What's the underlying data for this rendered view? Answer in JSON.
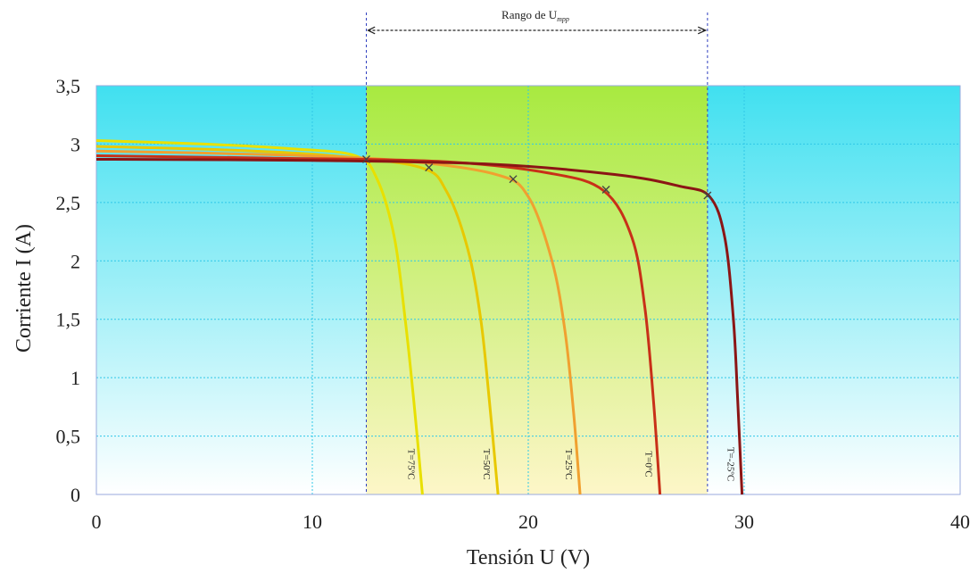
{
  "chart_data": {
    "type": "line",
    "xlabel": "Tensión U (V)",
    "ylabel": "Corriente I (A)",
    "xlim": [
      0,
      40
    ],
    "ylim": [
      0,
      3.5
    ],
    "x_ticks": [
      "0",
      "10",
      "20",
      "30",
      "40"
    ],
    "y_ticks": [
      "0",
      "0,5",
      "1",
      "1,5",
      "2",
      "2,5",
      "3",
      "3,5"
    ],
    "grid": true,
    "mpp_range": {
      "label_main": "Rango de U",
      "label_sub": "mpp",
      "x_start": 12.5,
      "x_end": 28.3
    },
    "series": [
      {
        "name": "T=75ºC",
        "color": "#e8e000",
        "isc": 3.03,
        "voc": 15.1,
        "points": [
          [
            0,
            3.03
          ],
          [
            5,
            3.0
          ],
          [
            9,
            2.96
          ],
          [
            12,
            2.9
          ],
          [
            13,
            2.7
          ],
          [
            13.8,
            2.2
          ],
          [
            14.3,
            1.5
          ],
          [
            14.7,
            0.8
          ],
          [
            15.1,
            0
          ]
        ],
        "mpp": [
          12.5,
          2.87
        ]
      },
      {
        "name": "T=50ºC",
        "color": "#e8c800",
        "isc": 2.98,
        "voc": 18.6,
        "points": [
          [
            0,
            2.98
          ],
          [
            6,
            2.95
          ],
          [
            11,
            2.9
          ],
          [
            15,
            2.8
          ],
          [
            16.2,
            2.6
          ],
          [
            17.2,
            2.1
          ],
          [
            17.8,
            1.5
          ],
          [
            18.2,
            0.8
          ],
          [
            18.6,
            0
          ]
        ],
        "mpp": [
          15.4,
          2.8
        ]
      },
      {
        "name": "T=25ºC",
        "color": "#f0a030",
        "isc": 2.94,
        "voc": 22.4,
        "points": [
          [
            0,
            2.94
          ],
          [
            8,
            2.91
          ],
          [
            14,
            2.86
          ],
          [
            18.5,
            2.74
          ],
          [
            20,
            2.55
          ],
          [
            21.1,
            2.0
          ],
          [
            21.7,
            1.4
          ],
          [
            22.1,
            0.7
          ],
          [
            22.4,
            0
          ]
        ],
        "mpp": [
          19.3,
          2.7
        ]
      },
      {
        "name": "T=0ºC",
        "color": "#c83018",
        "isc": 2.9,
        "voc": 26.1,
        "points": [
          [
            0,
            2.9
          ],
          [
            8,
            2.88
          ],
          [
            16,
            2.85
          ],
          [
            21,
            2.75
          ],
          [
            23.5,
            2.6
          ],
          [
            24.8,
            2.2
          ],
          [
            25.4,
            1.6
          ],
          [
            25.8,
            0.8
          ],
          [
            26.1,
            0
          ]
        ],
        "mpp": [
          23.6,
          2.61
        ]
      },
      {
        "name": "T=-25ºC",
        "color": "#8b1515",
        "isc": 2.87,
        "voc": 29.9,
        "points": [
          [
            0,
            2.87
          ],
          [
            10,
            2.86
          ],
          [
            18,
            2.83
          ],
          [
            24,
            2.74
          ],
          [
            27,
            2.64
          ],
          [
            28.4,
            2.55
          ],
          [
            29.1,
            2.2
          ],
          [
            29.5,
            1.5
          ],
          [
            29.7,
            0.8
          ],
          [
            29.9,
            0
          ]
        ],
        "mpp": [
          28.3,
          2.56
        ]
      }
    ]
  }
}
